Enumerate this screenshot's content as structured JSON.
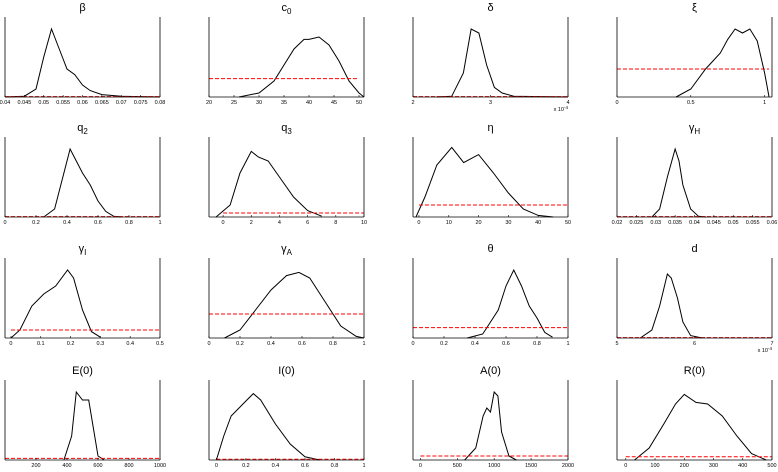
{
  "chart_data": [
    {
      "type": "line",
      "title": "β",
      "xlim": [
        0.04,
        0.08
      ],
      "ylim": [
        0,
        1
      ],
      "xticks": [
        0.04,
        0.045,
        0.05,
        0.055,
        0.06,
        0.065,
        0.07,
        0.075,
        0.08
      ],
      "series": [
        {
          "color": "#000000",
          "x": [
            0.04,
            0.045,
            0.048,
            0.05,
            0.052,
            0.054,
            0.056,
            0.058,
            0.06,
            0.062,
            0.065,
            0.07,
            0.08
          ],
          "values": [
            0,
            0.01,
            0.1,
            0.5,
            0.85,
            0.6,
            0.35,
            0.28,
            0.15,
            0.08,
            0.03,
            0.01,
            0
          ]
        },
        {
          "color": "#ff0000",
          "dashed": true,
          "x": [
            0.04,
            0.08
          ],
          "values": [
            0.005,
            0.005
          ]
        }
      ]
    },
    {
      "type": "line",
      "title": "c",
      "title_sub": "0",
      "xlim": [
        20,
        51
      ],
      "ylim": [
        0,
        1
      ],
      "xticks": [
        20,
        25,
        30,
        35,
        40,
        45,
        50
      ],
      "series": [
        {
          "color": "#000000",
          "x": [
            26,
            30,
            33,
            35,
            37,
            39,
            40,
            42,
            44,
            46,
            48,
            50,
            51
          ],
          "values": [
            0,
            0.05,
            0.2,
            0.4,
            0.6,
            0.72,
            0.72,
            0.75,
            0.65,
            0.45,
            0.2,
            0.05,
            0
          ]
        },
        {
          "color": "#ff0000",
          "dashed": true,
          "x": [
            20,
            50
          ],
          "values": [
            0.23,
            0.23
          ]
        }
      ]
    },
    {
      "type": "line",
      "title": "δ",
      "xlim": [
        2,
        4
      ],
      "ylim": [
        0,
        1
      ],
      "xticks": [
        2,
        3,
        4
      ],
      "scale_note": "x 10",
      "scale_exp": "-4",
      "series": [
        {
          "color": "#000000",
          "x": [
            2.3,
            2.5,
            2.65,
            2.75,
            2.85,
            2.95,
            3.05,
            3.15,
            3.3,
            4
          ],
          "values": [
            0,
            0.01,
            0.3,
            0.85,
            0.8,
            0.4,
            0.12,
            0.05,
            0.01,
            0
          ]
        },
        {
          "color": "#ff0000",
          "dashed": true,
          "x": [
            2,
            4
          ],
          "values": [
            0.005,
            0.005
          ]
        }
      ]
    },
    {
      "type": "line",
      "title": "ξ",
      "xlim": [
        0,
        1.05
      ],
      "ylim": [
        0,
        1
      ],
      "xticks": [
        0,
        0.5,
        1
      ],
      "series": [
        {
          "color": "#000000",
          "x": [
            0.4,
            0.5,
            0.6,
            0.65,
            0.7,
            0.75,
            0.8,
            0.85,
            0.9,
            0.95,
            1,
            1.03
          ],
          "values": [
            0,
            0.1,
            0.35,
            0.45,
            0.55,
            0.72,
            0.85,
            0.8,
            0.85,
            0.7,
            0.3,
            0
          ]
        },
        {
          "color": "#ff0000",
          "dashed": true,
          "x": [
            0,
            1.03
          ],
          "values": [
            0.35,
            0.35
          ]
        }
      ]
    },
    {
      "type": "line",
      "title": "q",
      "title_sub": "2",
      "xlim": [
        0,
        1
      ],
      "ylim": [
        0,
        1
      ],
      "xticks": [
        0,
        0.2,
        0.4,
        0.6,
        0.8,
        1
      ],
      "series": [
        {
          "color": "#000000",
          "x": [
            0.25,
            0.32,
            0.38,
            0.42,
            0.46,
            0.5,
            0.55,
            0.6,
            0.65,
            0.7,
            0.75
          ],
          "values": [
            0,
            0.1,
            0.55,
            0.85,
            0.7,
            0.55,
            0.4,
            0.2,
            0.07,
            0.01,
            0
          ]
        },
        {
          "color": "#ff0000",
          "dashed": true,
          "x": [
            0,
            1
          ],
          "values": [
            0.005,
            0.005
          ]
        }
      ]
    },
    {
      "type": "line",
      "title": "q",
      "title_sub": "3",
      "xlim": [
        -1,
        10
      ],
      "ylim": [
        0,
        1
      ],
      "xticks": [
        0,
        2,
        4,
        6,
        8,
        10
      ],
      "series": [
        {
          "color": "#000000",
          "x": [
            -0.5,
            0.5,
            1.2,
            2,
            2.5,
            3.2,
            4,
            5,
            6,
            7
          ],
          "values": [
            0,
            0.15,
            0.55,
            0.82,
            0.75,
            0.7,
            0.5,
            0.25,
            0.08,
            0.01
          ]
        },
        {
          "color": "#ff0000",
          "dashed": true,
          "x": [
            0,
            10
          ],
          "values": [
            0.05,
            0.05
          ]
        }
      ]
    },
    {
      "type": "line",
      "title": "η",
      "xlim": [
        -2,
        50
      ],
      "ylim": [
        0,
        1
      ],
      "xticks": [
        0,
        10,
        20,
        30,
        40,
        50
      ],
      "series": [
        {
          "color": "#000000",
          "x": [
            -1,
            2,
            6,
            11,
            15,
            20,
            25,
            30,
            35,
            40,
            45
          ],
          "values": [
            0,
            0.25,
            0.65,
            0.87,
            0.68,
            0.78,
            0.55,
            0.3,
            0.1,
            0.02,
            0
          ]
        },
        {
          "color": "#ff0000",
          "dashed": true,
          "x": [
            0,
            50
          ],
          "values": [
            0.15,
            0.15
          ]
        }
      ]
    },
    {
      "type": "line",
      "title": "γ",
      "title_sub": "H",
      "xlim": [
        0.02,
        0.06
      ],
      "ylim": [
        0,
        1
      ],
      "xticks": [
        0.02,
        0.025,
        0.03,
        0.035,
        0.04,
        0.045,
        0.05,
        0.055,
        0.06
      ],
      "series": [
        {
          "color": "#000000",
          "x": [
            0.029,
            0.031,
            0.033,
            0.035,
            0.036,
            0.037,
            0.039,
            0.041,
            0.043
          ],
          "values": [
            0,
            0.1,
            0.5,
            0.85,
            0.7,
            0.4,
            0.1,
            0.01,
            0
          ]
        },
        {
          "color": "#ff0000",
          "dashed": true,
          "x": [
            0.02,
            0.06
          ],
          "values": [
            0.005,
            0.005
          ]
        }
      ]
    },
    {
      "type": "line",
      "title": "γ",
      "title_sub": "I",
      "xlim": [
        -0.02,
        0.5
      ],
      "ylim": [
        0,
        1
      ],
      "xticks": [
        0,
        0.1,
        0.2,
        0.3,
        0.4,
        0.5
      ],
      "series": [
        {
          "color": "#000000",
          "x": [
            0,
            0.03,
            0.07,
            0.11,
            0.15,
            0.19,
            0.21,
            0.24,
            0.27,
            0.3
          ],
          "values": [
            0,
            0.1,
            0.4,
            0.55,
            0.65,
            0.85,
            0.75,
            0.35,
            0.08,
            0.01
          ]
        },
        {
          "color": "#ff0000",
          "dashed": true,
          "x": [
            0,
            0.5
          ],
          "values": [
            0.1,
            0.1
          ]
        }
      ]
    },
    {
      "type": "line",
      "title": "γ",
      "title_sub": "A",
      "xlim": [
        0,
        1
      ],
      "ylim": [
        0,
        1
      ],
      "xticks": [
        0,
        0.2,
        0.4,
        0.6,
        0.8,
        1
      ],
      "series": [
        {
          "color": "#000000",
          "x": [
            0.1,
            0.2,
            0.3,
            0.4,
            0.5,
            0.58,
            0.65,
            0.75,
            0.85,
            0.95,
            1
          ],
          "values": [
            0,
            0.1,
            0.35,
            0.6,
            0.78,
            0.82,
            0.75,
            0.45,
            0.15,
            0.02,
            0
          ]
        },
        {
          "color": "#ff0000",
          "dashed": true,
          "x": [
            0,
            1
          ],
          "values": [
            0.3,
            0.3
          ]
        }
      ]
    },
    {
      "type": "line",
      "title": "θ",
      "xlim": [
        0,
        1
      ],
      "ylim": [
        0,
        1
      ],
      "xticks": [
        0,
        0.2,
        0.4,
        0.6,
        0.8,
        1
      ],
      "series": [
        {
          "color": "#000000",
          "x": [
            0.35,
            0.45,
            0.55,
            0.6,
            0.65,
            0.7,
            0.75,
            0.8,
            0.85,
            0.9
          ],
          "values": [
            0,
            0.05,
            0.35,
            0.65,
            0.85,
            0.65,
            0.4,
            0.25,
            0.07,
            0.01
          ]
        },
        {
          "color": "#ff0000",
          "dashed": true,
          "x": [
            0,
            1
          ],
          "values": [
            0.13,
            0.13
          ]
        }
      ]
    },
    {
      "type": "line",
      "title": "d",
      "xlim": [
        5,
        7
      ],
      "ylim": [
        0,
        1
      ],
      "xticks": [
        5,
        6,
        7
      ],
      "scale_note": "x 10",
      "scale_exp": "-4",
      "series": [
        {
          "color": "#000000",
          "x": [
            5.3,
            5.45,
            5.55,
            5.65,
            5.7,
            5.78,
            5.85,
            5.95,
            6.1
          ],
          "values": [
            0,
            0.1,
            0.4,
            0.8,
            0.75,
            0.5,
            0.2,
            0.03,
            0
          ]
        },
        {
          "color": "#ff0000",
          "dashed": true,
          "x": [
            5,
            7
          ],
          "values": [
            0.005,
            0.005
          ]
        }
      ]
    },
    {
      "type": "line",
      "title": "E(0)",
      "xlim": [
        0,
        1000
      ],
      "ylim": [
        0,
        1
      ],
      "xticks": [
        200,
        400,
        600,
        800,
        1000
      ],
      "series": [
        {
          "color": "#000000",
          "x": [
            380,
            430,
            460,
            500,
            540,
            570,
            600,
            640
          ],
          "values": [
            0,
            0.3,
            0.85,
            0.75,
            0.75,
            0.4,
            0.05,
            0
          ]
        },
        {
          "color": "#ff0000",
          "dashed": true,
          "x": [
            0,
            1000
          ],
          "values": [
            0.02,
            0.02
          ]
        }
      ]
    },
    {
      "type": "line",
      "title": "I(0)",
      "xlim": [
        -0.05,
        1
      ],
      "ylim": [
        0,
        1
      ],
      "xticks": [
        0,
        0.2,
        0.4,
        0.6,
        0.8,
        1
      ],
      "series": [
        {
          "color": "#000000",
          "x": [
            0,
            0.05,
            0.1,
            0.18,
            0.25,
            0.3,
            0.4,
            0.5,
            0.6,
            0.7
          ],
          "values": [
            0,
            0.3,
            0.55,
            0.7,
            0.83,
            0.75,
            0.45,
            0.2,
            0.04,
            0
          ]
        },
        {
          "color": "#ff0000",
          "dashed": true,
          "x": [
            0,
            1
          ],
          "values": [
            0.01,
            0.01
          ]
        }
      ]
    },
    {
      "type": "line",
      "title": "A(0)",
      "xlim": [
        -100,
        2000
      ],
      "ylim": [
        0,
        1
      ],
      "xticks": [
        0,
        500,
        1000,
        1500,
        2000
      ],
      "series": [
        {
          "color": "#000000",
          "x": [
            600,
            750,
            850,
            900,
            950,
            1000,
            1050,
            1100,
            1200,
            1300
          ],
          "values": [
            0,
            0.15,
            0.55,
            0.65,
            0.6,
            0.85,
            0.8,
            0.35,
            0.05,
            0
          ]
        },
        {
          "color": "#ff0000",
          "dashed": true,
          "x": [
            0,
            2000
          ],
          "values": [
            0.05,
            0.05
          ]
        }
      ]
    },
    {
      "type": "line",
      "title": "R(0)",
      "xlim": [
        -30,
        500
      ],
      "ylim": [
        0,
        1
      ],
      "xticks": [
        0,
        100,
        200,
        300,
        400,
        500
      ],
      "series": [
        {
          "color": "#000000",
          "x": [
            30,
            80,
            130,
            170,
            200,
            240,
            280,
            330,
            380,
            430,
            480
          ],
          "values": [
            0,
            0.15,
            0.45,
            0.7,
            0.82,
            0.72,
            0.7,
            0.55,
            0.3,
            0.08,
            0
          ]
        },
        {
          "color": "#ff0000",
          "dashed": true,
          "x": [
            0,
            500
          ],
          "values": [
            0.04,
            0.04
          ]
        }
      ]
    }
  ]
}
